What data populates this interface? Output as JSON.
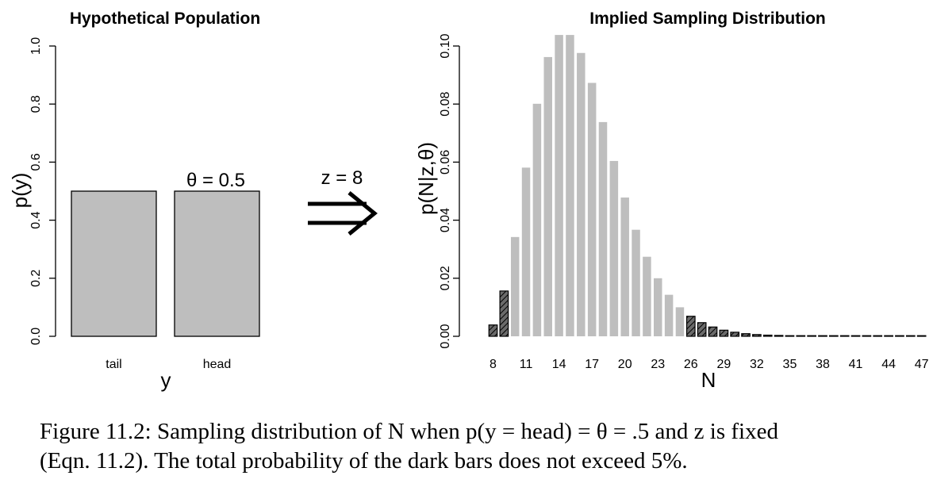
{
  "chart_data": [
    {
      "type": "bar",
      "title": "Hypothetical Population",
      "xlabel": "y",
      "ylabel": "p(y)",
      "categories": [
        "tail",
        "head"
      ],
      "values": [
        0.5,
        0.5
      ],
      "ylim": [
        0,
        1
      ],
      "yticks": [
        "0.0",
        "0.2",
        "0.4",
        "0.6",
        "0.8",
        "1.0"
      ],
      "annotation": "θ = 0.5",
      "bar_color": "#bebebe"
    },
    {
      "type": "bar",
      "title": "Implied Sampling Distribution",
      "xlabel": "N",
      "ylabel": "p(N|z,θ)",
      "x": [
        8,
        9,
        10,
        11,
        12,
        13,
        14,
        15,
        16,
        17,
        18,
        19,
        20,
        21,
        22,
        23,
        24,
        25,
        26,
        27,
        28,
        29,
        30,
        31,
        32,
        33,
        34,
        35,
        36,
        37,
        38,
        39,
        40,
        41,
        42,
        43,
        44,
        45,
        46,
        47
      ],
      "values": [
        0.0039,
        0.0156,
        0.0342,
        0.0581,
        0.0801,
        0.0962,
        0.1038,
        0.1038,
        0.0976,
        0.0873,
        0.0738,
        0.0604,
        0.0478,
        0.0367,
        0.0274,
        0.02,
        0.0143,
        0.01,
        0.0069,
        0.0047,
        0.0032,
        0.0021,
        0.0014,
        0.0009,
        0.0006,
        0.0004,
        0.0003,
        0.0002,
        0.0001,
        0.0001,
        0.0001,
        0.0,
        0.0,
        0.0,
        0.0,
        0.0,
        0.0,
        0.0,
        0.0,
        0.0
      ],
      "dark_bars": [
        8,
        9,
        26,
        27,
        28,
        29,
        30,
        31,
        32,
        33,
        34,
        35,
        36,
        37,
        38,
        39,
        40,
        41,
        42,
        43,
        44,
        45,
        46,
        47
      ],
      "xticks": [
        "8",
        "11",
        "14",
        "17",
        "20",
        "23",
        "26",
        "29",
        "32",
        "35",
        "38",
        "41",
        "44",
        "47"
      ],
      "ylim": [
        0,
        0.105
      ],
      "yticks": [
        "0.00",
        "0.02",
        "0.04",
        "0.06",
        "0.08",
        "0.10"
      ],
      "light_color": "#bebebe",
      "dark_color": "#555555"
    }
  ],
  "arrow_label": "z = 8",
  "caption_line1": "Figure 11.2: Sampling distribution of N when p(y = head) = θ = .5 and z is fixed",
  "caption_line2": "(Eqn. 11.2). The total probability of the dark bars does not exceed 5%."
}
